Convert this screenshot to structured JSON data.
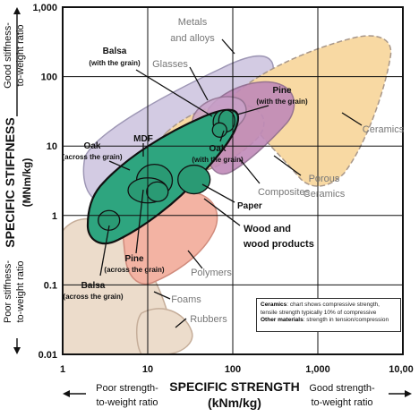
{
  "chart_data": {
    "type": "scatter",
    "x_scale": "log",
    "y_scale": "log",
    "xlim": [
      1,
      10000
    ],
    "ylim": [
      0.01,
      1000
    ],
    "grid": true,
    "x_ticks": [
      "1",
      "10",
      "100",
      "1,000",
      "10,00"
    ],
    "y_ticks": [
      "1,000",
      "100",
      "10",
      "1",
      "0.1",
      "0.01"
    ],
    "xlabel_line1": "SPECIFIC STRENGTH",
    "xlabel_line2": "(kNm/kg)",
    "ylabel_line1": "SPECIFIC STIFFNESS",
    "ylabel_line2": "(MNm/kg)",
    "annotations": {
      "x_left": [
        "Poor strength-",
        "to-weight ratio"
      ],
      "x_right": [
        "Good strength-",
        "to-weight ratio"
      ],
      "y_top": [
        "Good stiffness-",
        "to-weight ratio"
      ],
      "y_bottom": [
        "Poor stiffness-",
        "to-weight ratio"
      ]
    },
    "material_families": [
      {
        "label": "Metals and alloys",
        "lines": [
          "Metals",
          "and alloys"
        ],
        "color": "#d3cbe3"
      },
      {
        "label": "Glasses",
        "lines": [
          "Glasses"
        ],
        "color": "#c9a2c9"
      },
      {
        "label": "Ceramics",
        "lines": [
          "Ceramics"
        ],
        "color": "#f8d9a3"
      },
      {
        "label": "Porous Ceramics",
        "lines": [
          "Porous",
          "Ceramics"
        ],
        "color": "#f8d9a3"
      },
      {
        "label": "Composites",
        "lines": [
          "Composites"
        ],
        "color": "#c08ab9"
      },
      {
        "label": "Polymers",
        "lines": [
          "Polymers"
        ],
        "color": "#f3b3a3"
      },
      {
        "label": "Foams",
        "lines": [
          "Foams"
        ],
        "color": "#ecdccb"
      },
      {
        "label": "Rubbers",
        "lines": [
          "Rubbers"
        ],
        "color": "#ecdccb"
      },
      {
        "label": "Wood and wood products",
        "lines": [
          "Wood and",
          "wood products"
        ],
        "color": "#2ea57f"
      }
    ],
    "wood_products": [
      {
        "name": "Balsa",
        "sub": "(with the grain)",
        "strength_x": 75,
        "stiffness_y": 22
      },
      {
        "name": "Pine",
        "sub": "(with the grain)",
        "strength_x": 85,
        "stiffness_y": 23
      },
      {
        "name": "Oak",
        "sub": "(with the grain)",
        "strength_x": 70,
        "stiffness_y": 17
      },
      {
        "name": "MDF",
        "sub": "",
        "strength_x": 12,
        "stiffness_y": 3.2
      },
      {
        "name": "Oak",
        "sub": "(across the grain)",
        "strength_x": 10,
        "stiffness_y": 2.3
      },
      {
        "name": "Paper",
        "sub": "",
        "strength_x": 35,
        "stiffness_y": 3.3
      },
      {
        "name": "Pine",
        "sub": "(across the grain)",
        "strength_x": 13,
        "stiffness_y": 2.2
      },
      {
        "name": "Balsa",
        "sub": "(across the grain)",
        "strength_x": 3.5,
        "stiffness_y": 0.85
      }
    ],
    "note": {
      "ceramics_label": "Ceramics",
      "ceramics_text": ": chart shows compressive strength, tensile strength typically 10% of compressive",
      "other_label": "Other materials",
      "other_text": ": strength in tension/compression"
    }
  }
}
